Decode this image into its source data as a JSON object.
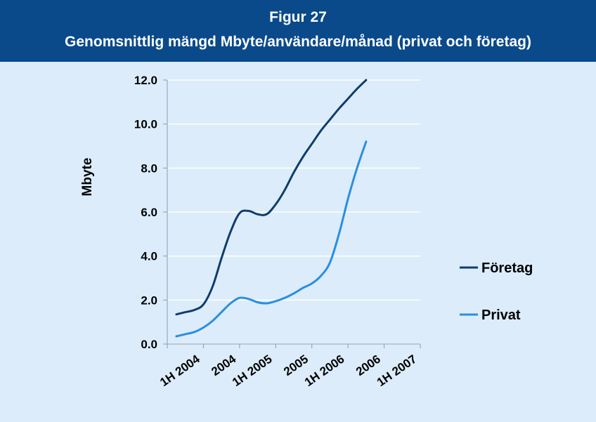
{
  "header": {
    "title": "Figur 27",
    "subtitle": "Genomsnittlig mängd Mbyte/användare/månad (privat och företag)"
  },
  "colors": {
    "header_bg": "#0a4a8a",
    "plot_bg": "#dcecfb",
    "foretag": "#0f3d6b",
    "privat": "#2a8ee0"
  },
  "chart_data": {
    "type": "line",
    "title": "Genomsnittlig mängd Mbyte/användare/månad (privat och företag)",
    "xlabel": "",
    "ylabel": "Mbyte",
    "ylim": [
      0,
      12
    ],
    "yticks": [
      "0.0",
      "2.0",
      "4.0",
      "6.0",
      "8.0",
      "10.0",
      "12.0"
    ],
    "categories": [
      "1H 2004",
      "2004",
      "1H 2005",
      "2005",
      "1H 2006",
      "2006",
      "1H 2007"
    ],
    "grid": true,
    "legend": "right",
    "series": [
      {
        "name": "Företag",
        "color": "#0f3d6b",
        "points": [
          [
            0.25,
            1.35
          ],
          [
            0.5,
            1.45
          ],
          [
            0.75,
            1.55
          ],
          [
            1.0,
            1.8
          ],
          [
            1.25,
            2.6
          ],
          [
            1.5,
            3.9
          ],
          [
            1.75,
            5.1
          ],
          [
            2.0,
            5.95
          ],
          [
            2.25,
            6.05
          ],
          [
            2.5,
            5.9
          ],
          [
            2.75,
            5.9
          ],
          [
            3.0,
            6.35
          ],
          [
            3.25,
            7.0
          ],
          [
            3.5,
            7.8
          ],
          [
            3.75,
            8.5
          ],
          [
            4.0,
            9.1
          ],
          [
            4.25,
            9.7
          ],
          [
            4.5,
            10.2
          ],
          [
            4.75,
            10.7
          ],
          [
            5.0,
            11.15
          ],
          [
            5.25,
            11.6
          ],
          [
            5.5,
            12.0
          ]
        ]
      },
      {
        "name": "Privat",
        "color": "#2a8ee0",
        "points": [
          [
            0.25,
            0.35
          ],
          [
            0.5,
            0.45
          ],
          [
            0.75,
            0.55
          ],
          [
            1.0,
            0.75
          ],
          [
            1.25,
            1.05
          ],
          [
            1.5,
            1.45
          ],
          [
            1.75,
            1.85
          ],
          [
            2.0,
            2.1
          ],
          [
            2.25,
            2.05
          ],
          [
            2.5,
            1.9
          ],
          [
            2.75,
            1.85
          ],
          [
            3.0,
            1.95
          ],
          [
            3.25,
            2.1
          ],
          [
            3.5,
            2.3
          ],
          [
            3.75,
            2.55
          ],
          [
            4.0,
            2.75
          ],
          [
            4.25,
            3.1
          ],
          [
            4.5,
            3.7
          ],
          [
            4.75,
            5.0
          ],
          [
            5.0,
            6.6
          ],
          [
            5.25,
            8.0
          ],
          [
            5.5,
            9.2
          ]
        ]
      }
    ]
  }
}
